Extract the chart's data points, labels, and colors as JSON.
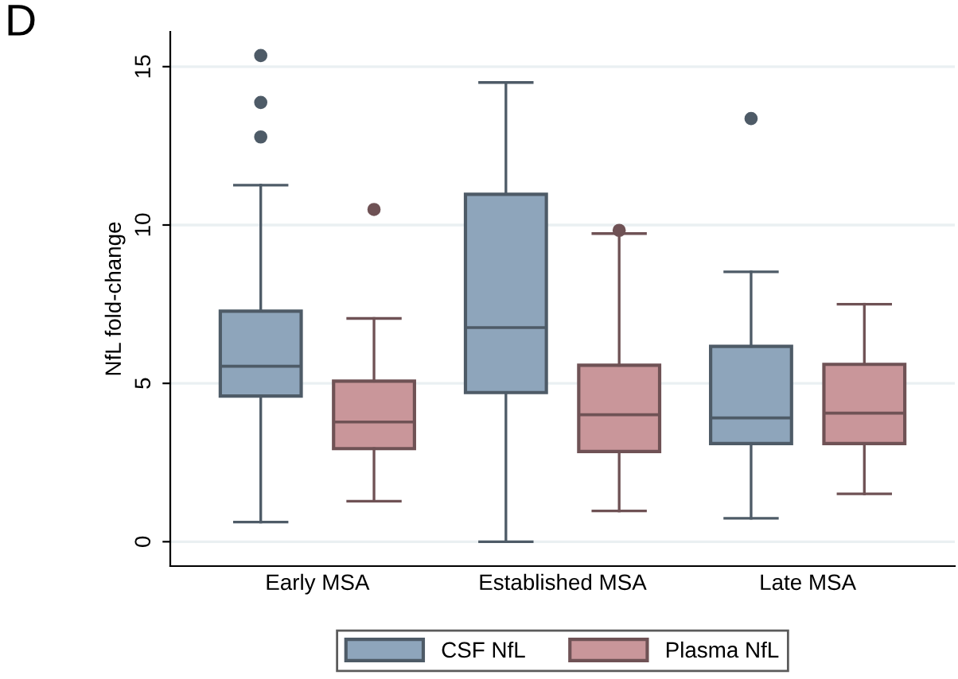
{
  "chart_data": {
    "type": "box",
    "ylabel": "NfL fold-change",
    "annotations": [
      "D"
    ],
    "categories": [
      "Early MSA",
      "Established MSA",
      "Late MSA"
    ],
    "ylim": [
      -0.77,
      16.1
    ],
    "yticks": [
      0,
      5,
      10,
      15
    ],
    "grid": "y",
    "legend": "bottom",
    "series": [
      {
        "name": "CSF NfL",
        "color": "#8ea5bb",
        "boxes": [
          {
            "low": 0.62,
            "q1": 4.6,
            "median": 5.54,
            "q3": 7.28,
            "high": 11.26,
            "outliers": [
              12.78,
              13.87,
              15.35
            ]
          },
          {
            "low": 0,
            "q1": 4.71,
            "median": 6.76,
            "q3": 10.97,
            "high": 14.5
          },
          {
            "low": 0.74,
            "q1": 3.1,
            "median": 3.91,
            "q3": 6.17,
            "high": 8.52,
            "outliers": [
              13.36
            ]
          }
        ]
      },
      {
        "name": "Plasma NfL",
        "color": "#c9969a",
        "boxes": [
          {
            "low": 1.28,
            "q1": 2.94,
            "median": 3.78,
            "q3": 5.07,
            "high": 7.05,
            "outliers": [
              10.49
            ]
          },
          {
            "low": 0.97,
            "q1": 2.85,
            "median": 4.01,
            "q3": 5.57,
            "high": 9.73,
            "outliers": [
              9.83
            ]
          },
          {
            "low": 1.51,
            "q1": 3.1,
            "median": 4.06,
            "q3": 5.6,
            "high": 7.5
          }
        ]
      }
    ]
  }
}
